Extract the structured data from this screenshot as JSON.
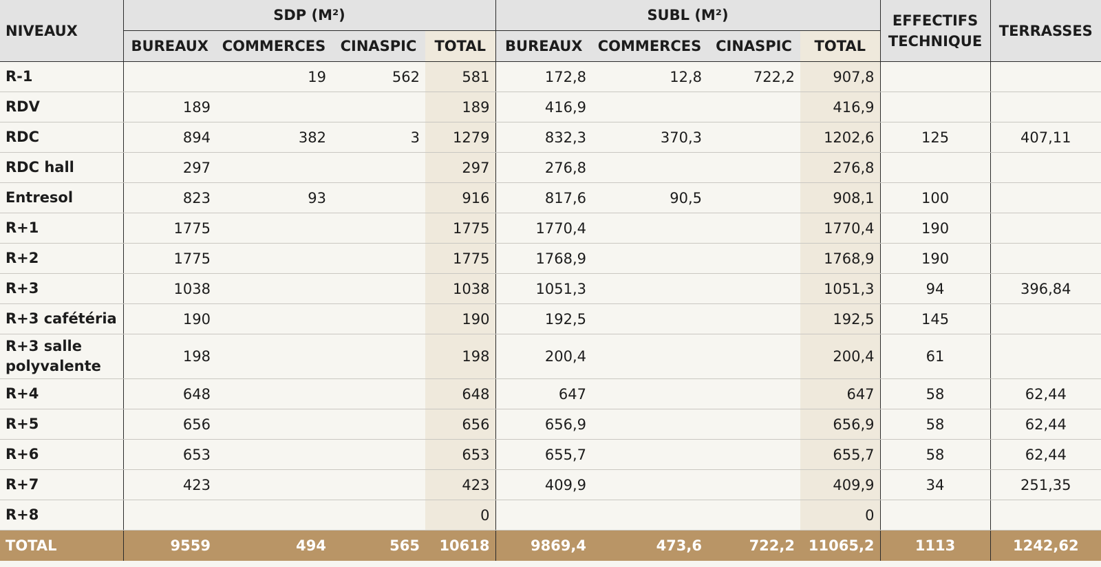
{
  "headers": {
    "niveaux": "NIVEAUX",
    "sdp": "SDP (M²)",
    "subl": "SUBL (M²)",
    "effectifs_line1": "EFFECTIFS",
    "effectifs_line2": "TECHNIQUE",
    "terrasses": "TERRASSES",
    "sub": [
      "BUREAUX",
      "COMMERCES",
      "CINASPIC",
      "TOTAL",
      "BUREAUX",
      "COMMERCES",
      "CINASPIC",
      "TOTAL"
    ]
  },
  "rows": [
    {
      "niveau": "R-1",
      "sdp": [
        "",
        "19",
        "562",
        "581"
      ],
      "subl": [
        "172,8",
        "12,8",
        "722,2",
        "907,8"
      ],
      "effectifs": "",
      "terrasses": ""
    },
    {
      "niveau": "RDV",
      "sdp": [
        "189",
        "",
        "",
        "189"
      ],
      "subl": [
        "416,9",
        "",
        "",
        "416,9"
      ],
      "effectifs": "",
      "terrasses": ""
    },
    {
      "niveau": "RDC",
      "sdp": [
        "894",
        "382",
        "3",
        "1279"
      ],
      "subl": [
        "832,3",
        "370,3",
        "",
        "1202,6"
      ],
      "effectifs": "125",
      "terrasses": "407,11"
    },
    {
      "niveau": "RDC hall",
      "sdp": [
        "297",
        "",
        "",
        "297"
      ],
      "subl": [
        "276,8",
        "",
        "",
        "276,8"
      ],
      "effectifs": "",
      "terrasses": ""
    },
    {
      "niveau": "Entresol",
      "sdp": [
        "823",
        "93",
        "",
        "916"
      ],
      "subl": [
        "817,6",
        "90,5",
        "",
        "908,1"
      ],
      "effectifs": "100",
      "terrasses": ""
    },
    {
      "niveau": "R+1",
      "sdp": [
        "1775",
        "",
        "",
        "1775"
      ],
      "subl": [
        "1770,4",
        "",
        "",
        "1770,4"
      ],
      "effectifs": "190",
      "terrasses": ""
    },
    {
      "niveau": "R+2",
      "sdp": [
        "1775",
        "",
        "",
        "1775"
      ],
      "subl": [
        "1768,9",
        "",
        "",
        "1768,9"
      ],
      "effectifs": "190",
      "terrasses": ""
    },
    {
      "niveau": "R+3",
      "sdp": [
        "1038",
        "",
        "",
        "1038"
      ],
      "subl": [
        "1051,3",
        "",
        "",
        "1051,3"
      ],
      "effectifs": "94",
      "terrasses": "396,84"
    },
    {
      "niveau": "R+3 cafétéria",
      "sdp": [
        "190",
        "",
        "",
        "190"
      ],
      "subl": [
        "192,5",
        "",
        "",
        "192,5"
      ],
      "effectifs": "145",
      "terrasses": ""
    },
    {
      "niveau": "R+3 salle polyvalente",
      "sdp": [
        "198",
        "",
        "",
        "198"
      ],
      "subl": [
        "200,4",
        "",
        "",
        "200,4"
      ],
      "effectifs": "61",
      "terrasses": "",
      "tall": true
    },
    {
      "niveau": "R+4",
      "sdp": [
        "648",
        "",
        "",
        "648"
      ],
      "subl": [
        "647",
        "",
        "",
        "647"
      ],
      "effectifs": "58",
      "terrasses": "62,44"
    },
    {
      "niveau": "R+5",
      "sdp": [
        "656",
        "",
        "",
        "656"
      ],
      "subl": [
        "656,9",
        "",
        "",
        "656,9"
      ],
      "effectifs": "58",
      "terrasses": "62,44"
    },
    {
      "niveau": "R+6",
      "sdp": [
        "653",
        "",
        "",
        "653"
      ],
      "subl": [
        "655,7",
        "",
        "",
        "655,7"
      ],
      "effectifs": "58",
      "terrasses": "62,44"
    },
    {
      "niveau": "R+7",
      "sdp": [
        "423",
        "",
        "",
        "423"
      ],
      "subl": [
        "409,9",
        "",
        "",
        "409,9"
      ],
      "effectifs": "34",
      "terrasses": "251,35"
    },
    {
      "niveau": "R+8",
      "sdp": [
        "",
        "",
        "",
        "0"
      ],
      "subl": [
        "",
        "",
        "",
        "0"
      ],
      "effectifs": "",
      "terrasses": ""
    }
  ],
  "total": {
    "niveau": "TOTAL",
    "sdp": [
      "9559",
      "494",
      "565",
      "10618"
    ],
    "subl": [
      "9869,4",
      "473,6",
      "722,2",
      "11065,2"
    ],
    "effectifs": "1113",
    "terrasses": "1242,62"
  },
  "colors": {
    "header_bg": "#e3e3e3",
    "total_col_bg": "#efe9dc",
    "total_row_bg": "#b99566",
    "page_bg": "#f7f6f1"
  }
}
